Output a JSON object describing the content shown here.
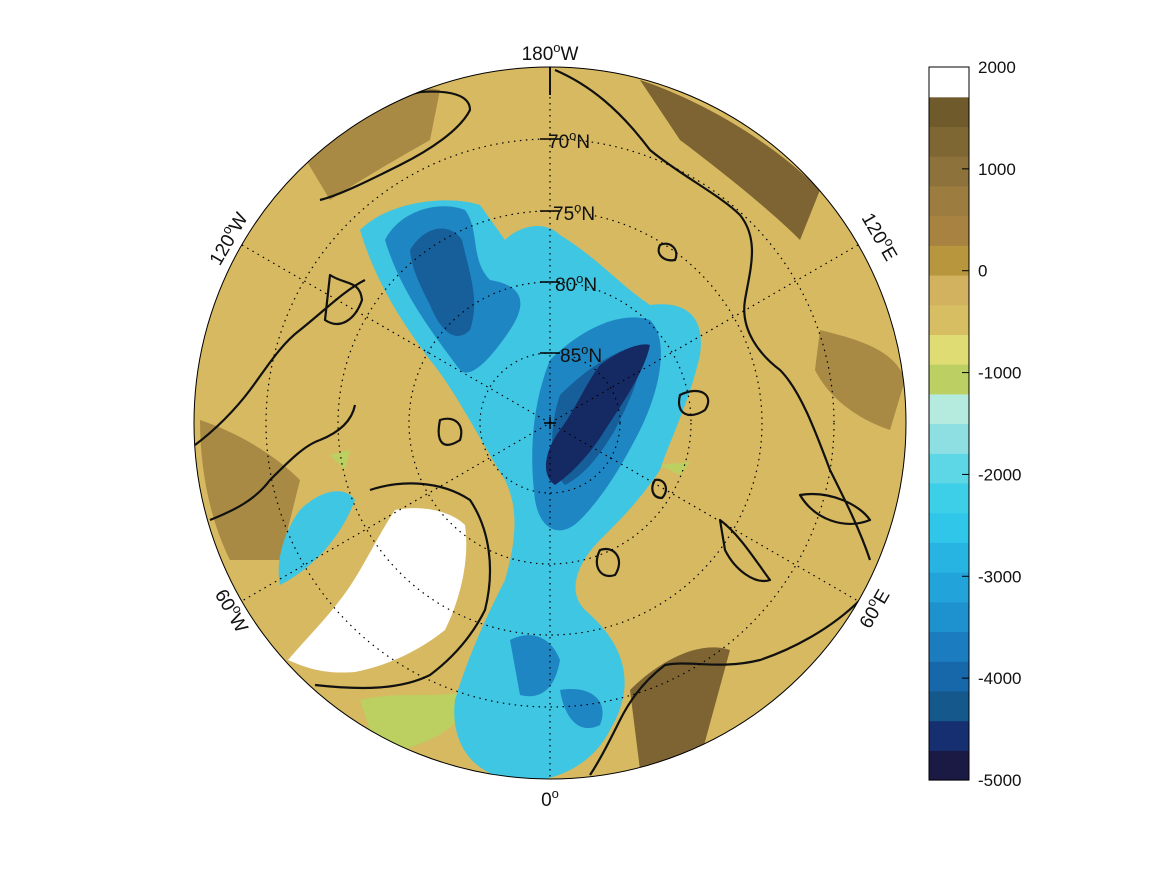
{
  "map": {
    "projection": "north-polar-stereographic",
    "graticule_style": "dotted",
    "meridian_labels": [
      {
        "base": "180",
        "sup": "o",
        "suffix": "W"
      },
      {
        "base": "120",
        "sup": "o",
        "suffix": "W"
      },
      {
        "base": "120",
        "sup": "o",
        "suffix": "E"
      },
      {
        "base": "60",
        "sup": "o",
        "suffix": "W"
      },
      {
        "base": "60",
        "sup": "o",
        "suffix": "E"
      },
      {
        "base": "0",
        "sup": "o",
        "suffix": ""
      }
    ],
    "parallel_labels": [
      {
        "base": "70",
        "sup": "o",
        "suffix": "N"
      },
      {
        "base": "75",
        "sup": "o",
        "suffix": "N"
      },
      {
        "base": "80",
        "sup": "o",
        "suffix": "N"
      },
      {
        "base": "85",
        "sup": "o",
        "suffix": "N"
      }
    ],
    "colors": {
      "land": "#d6b960",
      "highland": "#a88a45",
      "mountain": "#7d6432",
      "ice": "#ffffff",
      "coast": "#111111",
      "shelf": "#bcd062",
      "slope": "#3fc6e2",
      "basin": "#1f86c4",
      "deep": "#165f9a",
      "trench": "#152a63"
    }
  },
  "colorbar": {
    "min": -5000,
    "max": 2000,
    "tick_labels": [
      "2000",
      "1000",
      "0",
      "-1000",
      "-2000",
      "-3000",
      "-4000",
      "-5000"
    ],
    "colors": [
      "#1b1a44",
      "#152f70",
      "#14588c",
      "#1768ab",
      "#1b7dc0",
      "#1e92cf",
      "#22a3d9",
      "#27b4e2",
      "#2fc6ea",
      "#3ecfe8",
      "#5dd6e6",
      "#8ddfe2",
      "#b5ebde",
      "#bccf62",
      "#dedc72",
      "#d7be62",
      "#d2b15f",
      "#b8963e",
      "#a88241",
      "#9d7c3f",
      "#8d733b",
      "#7f6733",
      "#6f5a2c",
      "#ffffff"
    ]
  }
}
